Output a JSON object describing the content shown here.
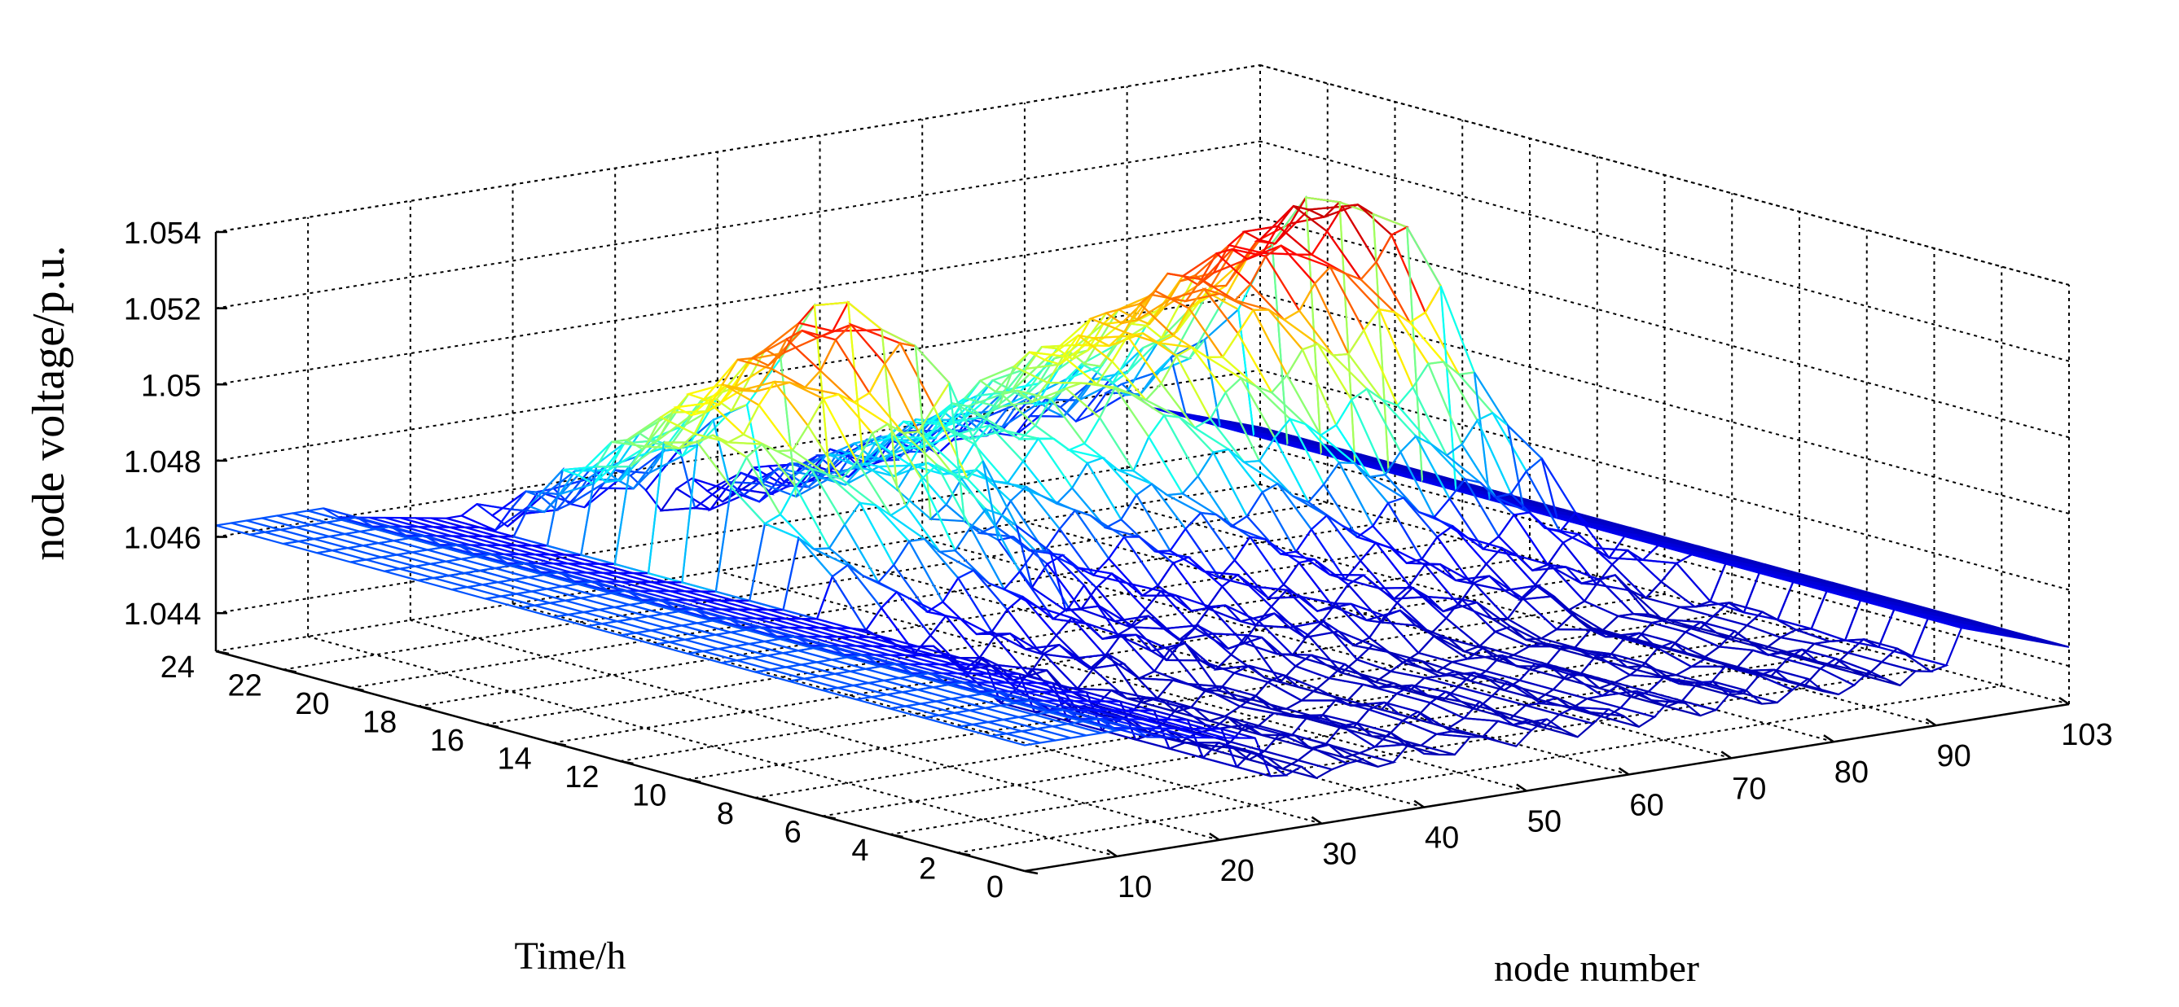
{
  "chart_data": {
    "type": "surface",
    "title": "",
    "xlabel": "node number",
    "ylabel": "Time/h",
    "zlabel": "node voltage/p.u.",
    "x_ticks": [
      10,
      20,
      30,
      40,
      50,
      60,
      70,
      80,
      90,
      103
    ],
    "y_ticks": [
      0,
      2,
      4,
      6,
      8,
      10,
      12,
      14,
      16,
      18,
      20,
      22,
      24
    ],
    "z_ticks": [
      "1.044",
      "1.046",
      "1.048",
      "1.05",
      "1.052",
      "1.054"
    ],
    "xlim": [
      1,
      103
    ],
    "ylim": [
      0,
      24
    ],
    "zlim": [
      1.043,
      1.054
    ],
    "grid": true,
    "colormap": "jet",
    "colormap_colors": [
      "#00008f",
      "#0000ff",
      "#00ffff",
      "#ffff00",
      "#ff0000",
      "#800000"
    ],
    "surface_description": {
      "baseline_pu": 1.0455,
      "regions": [
        {
          "nodes": [
            1,
            12
          ],
          "voltage_pu": 1.0463
        },
        {
          "nodes": [
            13,
            24
          ],
          "voltage_pu_range": [
            1.0455,
            1.046
          ]
        },
        {
          "nodes": [
            24,
            43
          ],
          "hours_peak": [
            10,
            22
          ],
          "peak_pu": 1.0525
        },
        {
          "nodes": [
            43,
            62
          ],
          "hours_peak": [
            10,
            22
          ],
          "peak_pu": 1.0495
        },
        {
          "nodes": [
            62,
            92
          ],
          "hours_peak": [
            10,
            22
          ],
          "peak_pu": 1.0535
        },
        {
          "nodes": [
            92,
            103
          ],
          "voltage_pu_range": [
            1.0445,
            1.0455
          ]
        }
      ]
    }
  }
}
